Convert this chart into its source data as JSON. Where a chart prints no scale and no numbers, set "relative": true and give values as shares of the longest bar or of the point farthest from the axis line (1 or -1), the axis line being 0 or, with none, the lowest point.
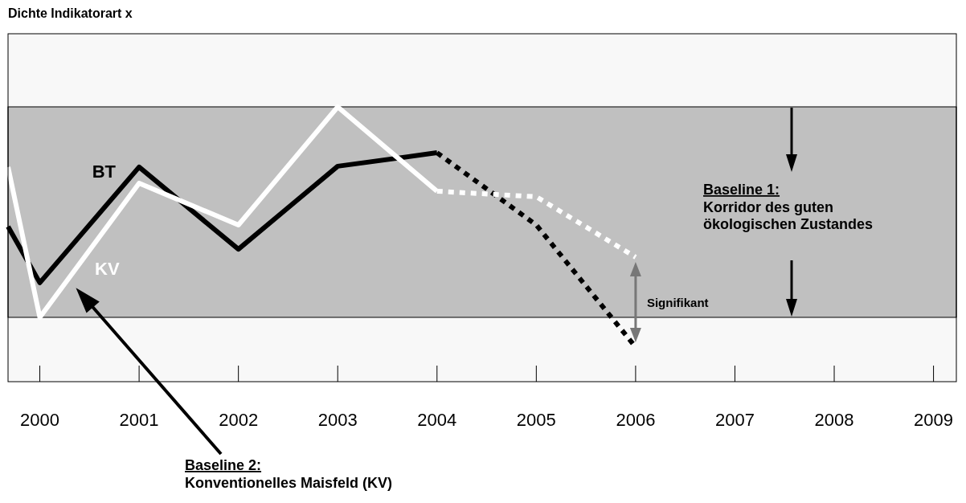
{
  "chart_data": {
    "type": "line",
    "title": "Dichte Indikatorart x",
    "relative": true,
    "xlim": [
      1999.68,
      2009.23
    ],
    "xticks": [
      2000,
      2001,
      2002,
      2003,
      2004,
      2005,
      2006,
      2007,
      2008,
      2009
    ],
    "series": [
      {
        "name": "BT",
        "color": "#000000",
        "line_style": "solid",
        "x": [
          1999.68,
          2000,
          2001,
          2002,
          2003,
          2004
        ],
        "values": [
          0.564,
          0.36,
          0.781,
          0.482,
          0.784,
          0.833
        ]
      },
      {
        "name": "KV",
        "color": "#ffffff",
        "line_style": "solid",
        "x": [
          1999.68,
          2000,
          2001,
          2002,
          2003,
          2004
        ],
        "values": [
          0.781,
          0.234,
          0.722,
          0.57,
          1,
          0.693
        ]
      },
      {
        "color": "#000000",
        "line_style": "dotted",
        "x": [
          2004,
          2005,
          2006
        ],
        "values": [
          0.833,
          0.57,
          0.126
        ]
      },
      {
        "color": "#ffffff",
        "line_style": "dotted",
        "x": [
          2004,
          2005,
          2006
        ],
        "values": [
          0.693,
          0.673,
          0.453
        ]
      }
    ],
    "bands": [
      {
        "axis": "y",
        "from": 0.234,
        "to": 1,
        "color": "#c0c0c0"
      }
    ],
    "annotations": [
      "Baseline 1:\nKorridor des guten\nökologischen Zustandes",
      "Signifikant",
      "Baseline 2:\nKonventionelles Maisfeld (KV)"
    ],
    "grid": false,
    "marker": "none"
  }
}
